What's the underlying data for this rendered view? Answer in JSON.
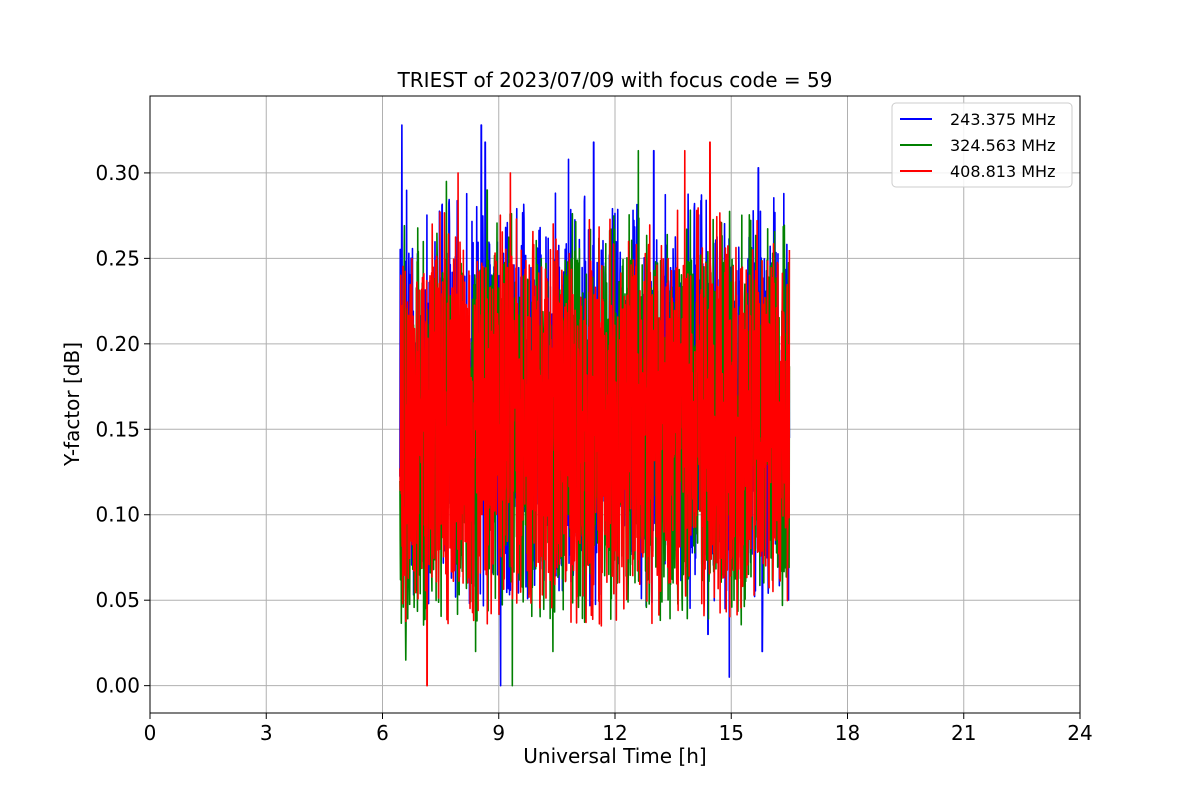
{
  "chart_data": {
    "type": "line",
    "title": "TRIEST of 2023/07/09 with focus code = 59",
    "xlabel": "Universal Time [h]",
    "ylabel": "Y-factor [dB]",
    "xlim": [
      0,
      24
    ],
    "ylim": [
      -0.016,
      0.345
    ],
    "xticks": [
      0,
      3,
      6,
      9,
      12,
      15,
      18,
      21,
      24
    ],
    "xtick_labels": [
      "0",
      "3",
      "6",
      "9",
      "12",
      "15",
      "18",
      "21",
      "24"
    ],
    "yticks": [
      0.0,
      0.05,
      0.1,
      0.15,
      0.2,
      0.25,
      0.3
    ],
    "ytick_labels": [
      "0.00",
      "0.05",
      "0.10",
      "0.15",
      "0.20",
      "0.25",
      "0.30"
    ],
    "grid": true,
    "legend_position": "top-right",
    "series": [
      {
        "name": "243.375 MHz",
        "color": "#0000ff",
        "x_range": [
          6.45,
          16.5
        ],
        "typical_band": [
          0.07,
          0.26
        ],
        "peaks": [
          {
            "x": 6.5,
            "y": 0.328
          },
          {
            "x": 8.55,
            "y": 0.328
          },
          {
            "x": 8.65,
            "y": 0.318
          },
          {
            "x": 10.8,
            "y": 0.308
          },
          {
            "x": 11.45,
            "y": 0.318
          },
          {
            "x": 13.0,
            "y": 0.313
          },
          {
            "x": 15.7,
            "y": 0.303
          }
        ],
        "troughs": [
          {
            "x": 9.05,
            "y": 0.0
          },
          {
            "x": 14.95,
            "y": 0.005
          },
          {
            "x": 15.8,
            "y": 0.02
          },
          {
            "x": 14.4,
            "y": 0.03
          }
        ]
      },
      {
        "name": "324.563 MHz",
        "color": "#008000",
        "x_range": [
          6.45,
          16.5
        ],
        "typical_band": [
          0.06,
          0.25
        ],
        "peaks": [
          {
            "x": 7.65,
            "y": 0.295
          },
          {
            "x": 12.6,
            "y": 0.313
          },
          {
            "x": 8.7,
            "y": 0.29
          }
        ],
        "troughs": [
          {
            "x": 9.35,
            "y": 0.0
          },
          {
            "x": 6.6,
            "y": 0.015
          },
          {
            "x": 10.4,
            "y": 0.02
          },
          {
            "x": 8.4,
            "y": 0.02
          }
        ]
      },
      {
        "name": "408.813 MHz",
        "color": "#ff0000",
        "x_range": [
          6.45,
          16.5
        ],
        "typical_band": [
          0.06,
          0.25
        ],
        "peaks": [
          {
            "x": 13.8,
            "y": 0.313
          },
          {
            "x": 14.45,
            "y": 0.318
          },
          {
            "x": 7.95,
            "y": 0.3
          },
          {
            "x": 9.3,
            "y": 0.3
          }
        ],
        "troughs": [
          {
            "x": 7.15,
            "y": 0.0
          },
          {
            "x": 11.65,
            "y": 0.035
          }
        ]
      }
    ]
  }
}
